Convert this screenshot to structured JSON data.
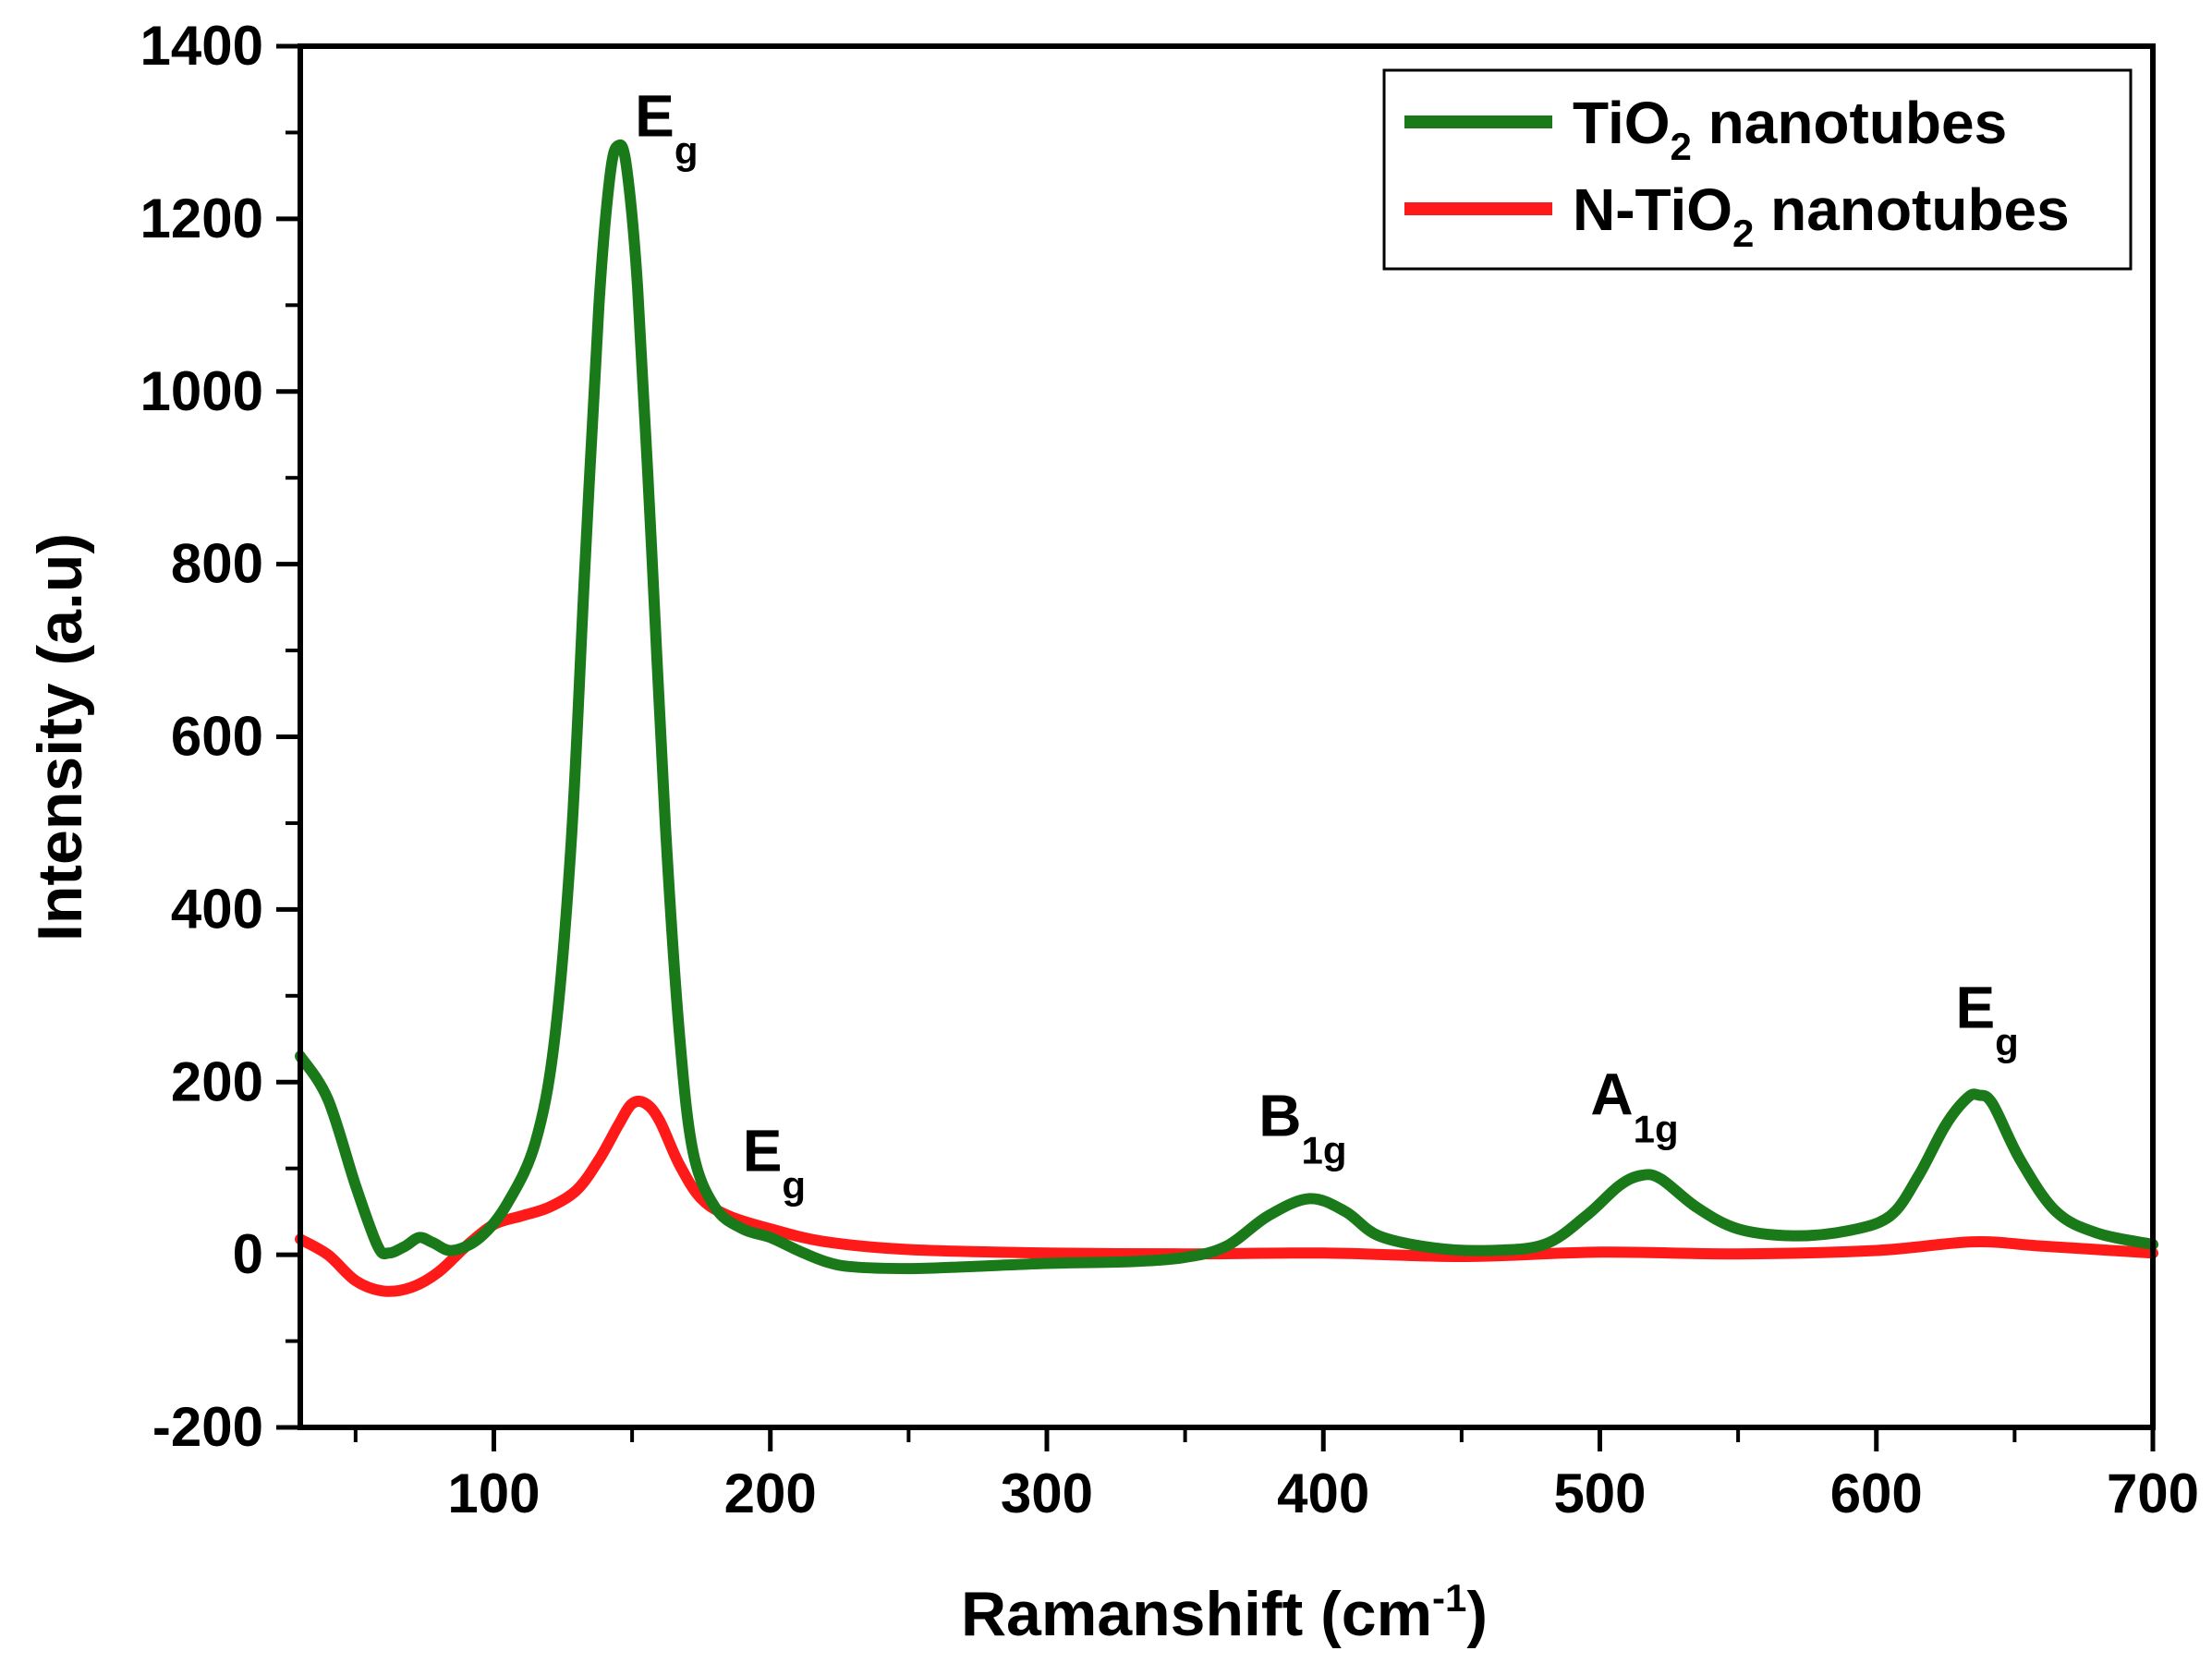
{
  "chart_data": {
    "type": "line",
    "title": "",
    "xlabel": "Ramanshift (cm",
    "xlabel_sup": "-1",
    "xlabel_end": ")",
    "ylabel": "Intensity (a.u)",
    "xlim": [
      30,
      700
    ],
    "ylim": [
      -200,
      1400
    ],
    "x_ticks": [
      100,
      200,
      300,
      400,
      500,
      600,
      700
    ],
    "y_ticks": [
      -200,
      0,
      200,
      400,
      600,
      800,
      1000,
      1200,
      1400
    ],
    "x_ticks_text": [
      "100",
      "200",
      "300",
      "400",
      "500",
      "600",
      "700"
    ],
    "y_ticks_text": [
      "-200",
      "0",
      "200",
      "400",
      "600",
      "800",
      "1000",
      "1200",
      "1400"
    ],
    "legend_position": "top-right",
    "series": [
      {
        "name": "TiO2 nanotubes",
        "legend_main": "TiO",
        "legend_sub": "2",
        "legend_tail": " nanotubes",
        "color": "#1a7a1a",
        "points": [
          [
            30,
            230
          ],
          [
            40,
            180
          ],
          [
            50,
            80
          ],
          [
            58,
            10
          ],
          [
            62,
            2
          ],
          [
            68,
            10
          ],
          [
            73,
            20
          ],
          [
            78,
            14
          ],
          [
            85,
            5
          ],
          [
            95,
            20
          ],
          [
            105,
            60
          ],
          [
            115,
            130
          ],
          [
            122,
            250
          ],
          [
            128,
            480
          ],
          [
            133,
            800
          ],
          [
            138,
            1100
          ],
          [
            142,
            1250
          ],
          [
            145,
            1285
          ],
          [
            148,
            1260
          ],
          [
            152,
            1120
          ],
          [
            157,
            820
          ],
          [
            162,
            500
          ],
          [
            167,
            260
          ],
          [
            172,
            120
          ],
          [
            180,
            55
          ],
          [
            190,
            30
          ],
          [
            200,
            20
          ],
          [
            210,
            5
          ],
          [
            220,
            -8
          ],
          [
            230,
            -14
          ],
          [
            250,
            -16
          ],
          [
            270,
            -14
          ],
          [
            300,
            -10
          ],
          [
            330,
            -8
          ],
          [
            350,
            -3
          ],
          [
            365,
            10
          ],
          [
            380,
            45
          ],
          [
            395,
            65
          ],
          [
            408,
            50
          ],
          [
            420,
            22
          ],
          [
            440,
            8
          ],
          [
            460,
            5
          ],
          [
            480,
            12
          ],
          [
            495,
            45
          ],
          [
            507,
            80
          ],
          [
            515,
            92
          ],
          [
            522,
            88
          ],
          [
            535,
            55
          ],
          [
            550,
            30
          ],
          [
            570,
            22
          ],
          [
            590,
            28
          ],
          [
            605,
            45
          ],
          [
            615,
            90
          ],
          [
            625,
            150
          ],
          [
            633,
            182
          ],
          [
            637,
            185
          ],
          [
            642,
            175
          ],
          [
            652,
            110
          ],
          [
            665,
            50
          ],
          [
            680,
            25
          ],
          [
            700,
            12
          ]
        ]
      },
      {
        "name": "N-TiO2 nanotubes",
        "legend_main": "N-TiO",
        "legend_sub": "2",
        "legend_tail": " nanotubes",
        "color": "#ff1a1a",
        "points": [
          [
            30,
            18
          ],
          [
            40,
            0
          ],
          [
            50,
            -30
          ],
          [
            60,
            -42
          ],
          [
            70,
            -38
          ],
          [
            80,
            -20
          ],
          [
            90,
            10
          ],
          [
            100,
            35
          ],
          [
            110,
            45
          ],
          [
            120,
            55
          ],
          [
            130,
            75
          ],
          [
            138,
            110
          ],
          [
            145,
            150
          ],
          [
            150,
            175
          ],
          [
            155,
            175
          ],
          [
            160,
            155
          ],
          [
            167,
            105
          ],
          [
            175,
            65
          ],
          [
            185,
            45
          ],
          [
            200,
            30
          ],
          [
            220,
            15
          ],
          [
            250,
            6
          ],
          [
            300,
            2
          ],
          [
            350,
            1
          ],
          [
            400,
            2
          ],
          [
            450,
            -2
          ],
          [
            500,
            3
          ],
          [
            550,
            1
          ],
          [
            600,
            5
          ],
          [
            635,
            15
          ],
          [
            660,
            10
          ],
          [
            700,
            2
          ]
        ]
      }
    ],
    "annotations": [
      {
        "main": "E",
        "sub": "g",
        "x": 145,
        "y": 1285
      },
      {
        "main": "E",
        "sub": "g",
        "x": 200,
        "y": 65
      },
      {
        "main": "B",
        "sub": "1g",
        "x": 395,
        "y": 100
      },
      {
        "main": "A",
        "sub": "1g",
        "x": 515,
        "y": 125
      },
      {
        "main": "E",
        "sub": "g",
        "x": 637,
        "y": 220
      }
    ]
  }
}
